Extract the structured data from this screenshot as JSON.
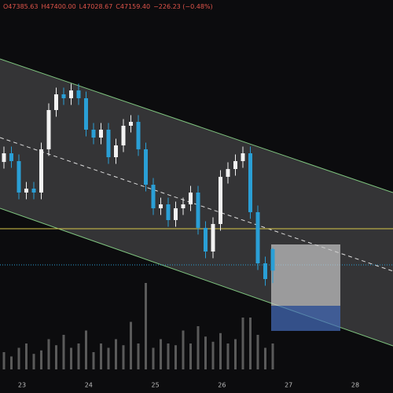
{
  "chart_data": {
    "type": "candlestick",
    "header": [
      "O47385.63",
      "H47400.00",
      "L47028.67",
      "C47159.40",
      "−226.23 (−0.48%)"
    ],
    "x_labels": [
      "23",
      "24",
      "25",
      "26",
      "27",
      "28"
    ],
    "up_color": "#f2f2f2",
    "down_color": "#2a9fd6",
    "volume_color": "#5a5a5a",
    "ylim": [
      46122.5,
      50000
    ],
    "volume_lim": [
      0,
      100
    ],
    "candles": [
      [
        48300,
        48461,
        48230,
        48391
      ],
      [
        48391,
        48461,
        48239,
        48309
      ],
      [
        48309,
        48379,
        47909,
        47979
      ],
      [
        47979,
        48090,
        47909,
        48020
      ],
      [
        48020,
        48090,
        47909,
        47979
      ],
      [
        47979,
        48503,
        47909,
        48433
      ],
      [
        48433,
        48915,
        48363,
        48845
      ],
      [
        48845,
        49080,
        48775,
        49010
      ],
      [
        49010,
        49080,
        48899,
        48969
      ],
      [
        48969,
        49121,
        48899,
        49051
      ],
      [
        49051,
        49121,
        48899,
        48969
      ],
      [
        48969,
        49039,
        48569,
        48639
      ],
      [
        48639,
        48709,
        48486,
        48556
      ],
      [
        48556,
        48709,
        48486,
        48639
      ],
      [
        48639,
        48709,
        48280,
        48350
      ],
      [
        48350,
        48544,
        48280,
        48474
      ],
      [
        48474,
        48750,
        48404,
        48680
      ],
      [
        48680,
        48791,
        48610,
        48721
      ],
      [
        48721,
        48791,
        48363,
        48433
      ],
      [
        48433,
        48503,
        47991,
        48061
      ],
      [
        48061,
        48131,
        47744,
        47814
      ],
      [
        47814,
        47925,
        47744,
        47855
      ],
      [
        47855,
        47925,
        47620,
        47690
      ],
      [
        47690,
        47884,
        47620,
        47814
      ],
      [
        47814,
        47925,
        47744,
        47855
      ],
      [
        47855,
        48049,
        47785,
        47979
      ],
      [
        47979,
        48049,
        47538,
        47608
      ],
      [
        47608,
        47678,
        47290,
        47360
      ],
      [
        47360,
        47719,
        47290,
        47649
      ],
      [
        47649,
        48214,
        47579,
        48144
      ],
      [
        48144,
        48296,
        48074,
        48226
      ],
      [
        48226,
        48379,
        48156,
        48309
      ],
      [
        48309,
        48461,
        48239,
        48391
      ],
      [
        48391,
        48461,
        47703,
        47773
      ],
      [
        47773,
        47843,
        47166,
        47236
      ],
      [
        47236,
        47306,
        47001,
        47071
      ],
      [
        47385.63,
        47400,
        47028.67,
        47159.4
      ]
    ],
    "volumes": [
      20,
      15,
      25,
      30,
      18,
      22,
      35,
      28,
      40,
      25,
      30,
      45,
      20,
      30,
      25,
      35,
      28,
      55,
      30,
      100,
      25,
      35,
      30,
      28,
      45,
      30,
      50,
      38,
      32,
      42,
      30,
      35,
      60,
      60,
      40,
      25,
      30
    ]
  }
}
